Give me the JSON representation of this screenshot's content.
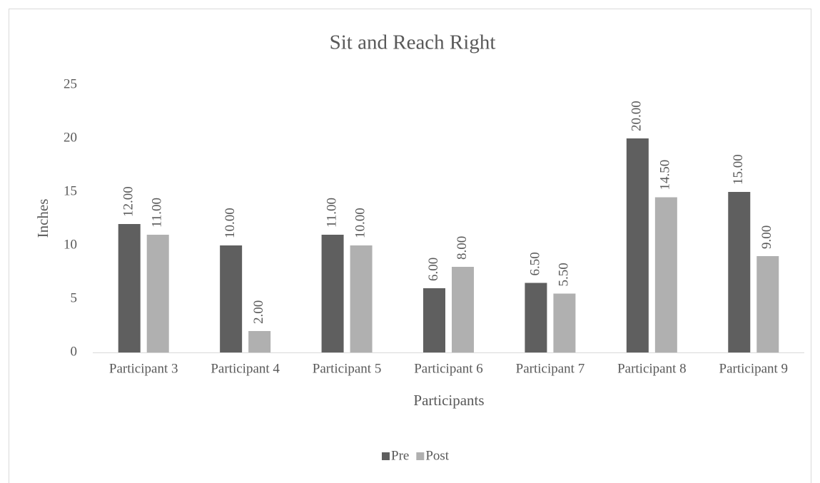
{
  "chart_data": {
    "type": "bar",
    "title": "Sit and Reach Right",
    "x_label": "Participants",
    "y_label": "Inches",
    "categories": [
      "Participant 3",
      "Participant 4",
      "Participant 5",
      "Participant 6",
      "Participant 7",
      "Participant 8",
      "Participant 9"
    ],
    "series": [
      {
        "name": "Pre",
        "color": "#5f5f5f",
        "values": [
          12,
          10,
          11,
          6,
          6.5,
          20,
          15
        ],
        "value_labels": [
          "12.00",
          "10.00",
          "11.00",
          "6.00",
          "6.50",
          "20.00",
          "15.00"
        ]
      },
      {
        "name": "Post",
        "color": "#b0b0b0",
        "values": [
          11,
          2,
          10,
          8,
          5.5,
          14.5,
          9
        ],
        "value_labels": [
          "11.00",
          "2.00",
          "10.00",
          "8.00",
          "5.50",
          "14.50",
          "9.00"
        ]
      }
    ],
    "ylim": [
      0,
      25
    ],
    "yticks": [
      0,
      5,
      10,
      15,
      20,
      25
    ],
    "grid": false,
    "legend": "bottom"
  }
}
